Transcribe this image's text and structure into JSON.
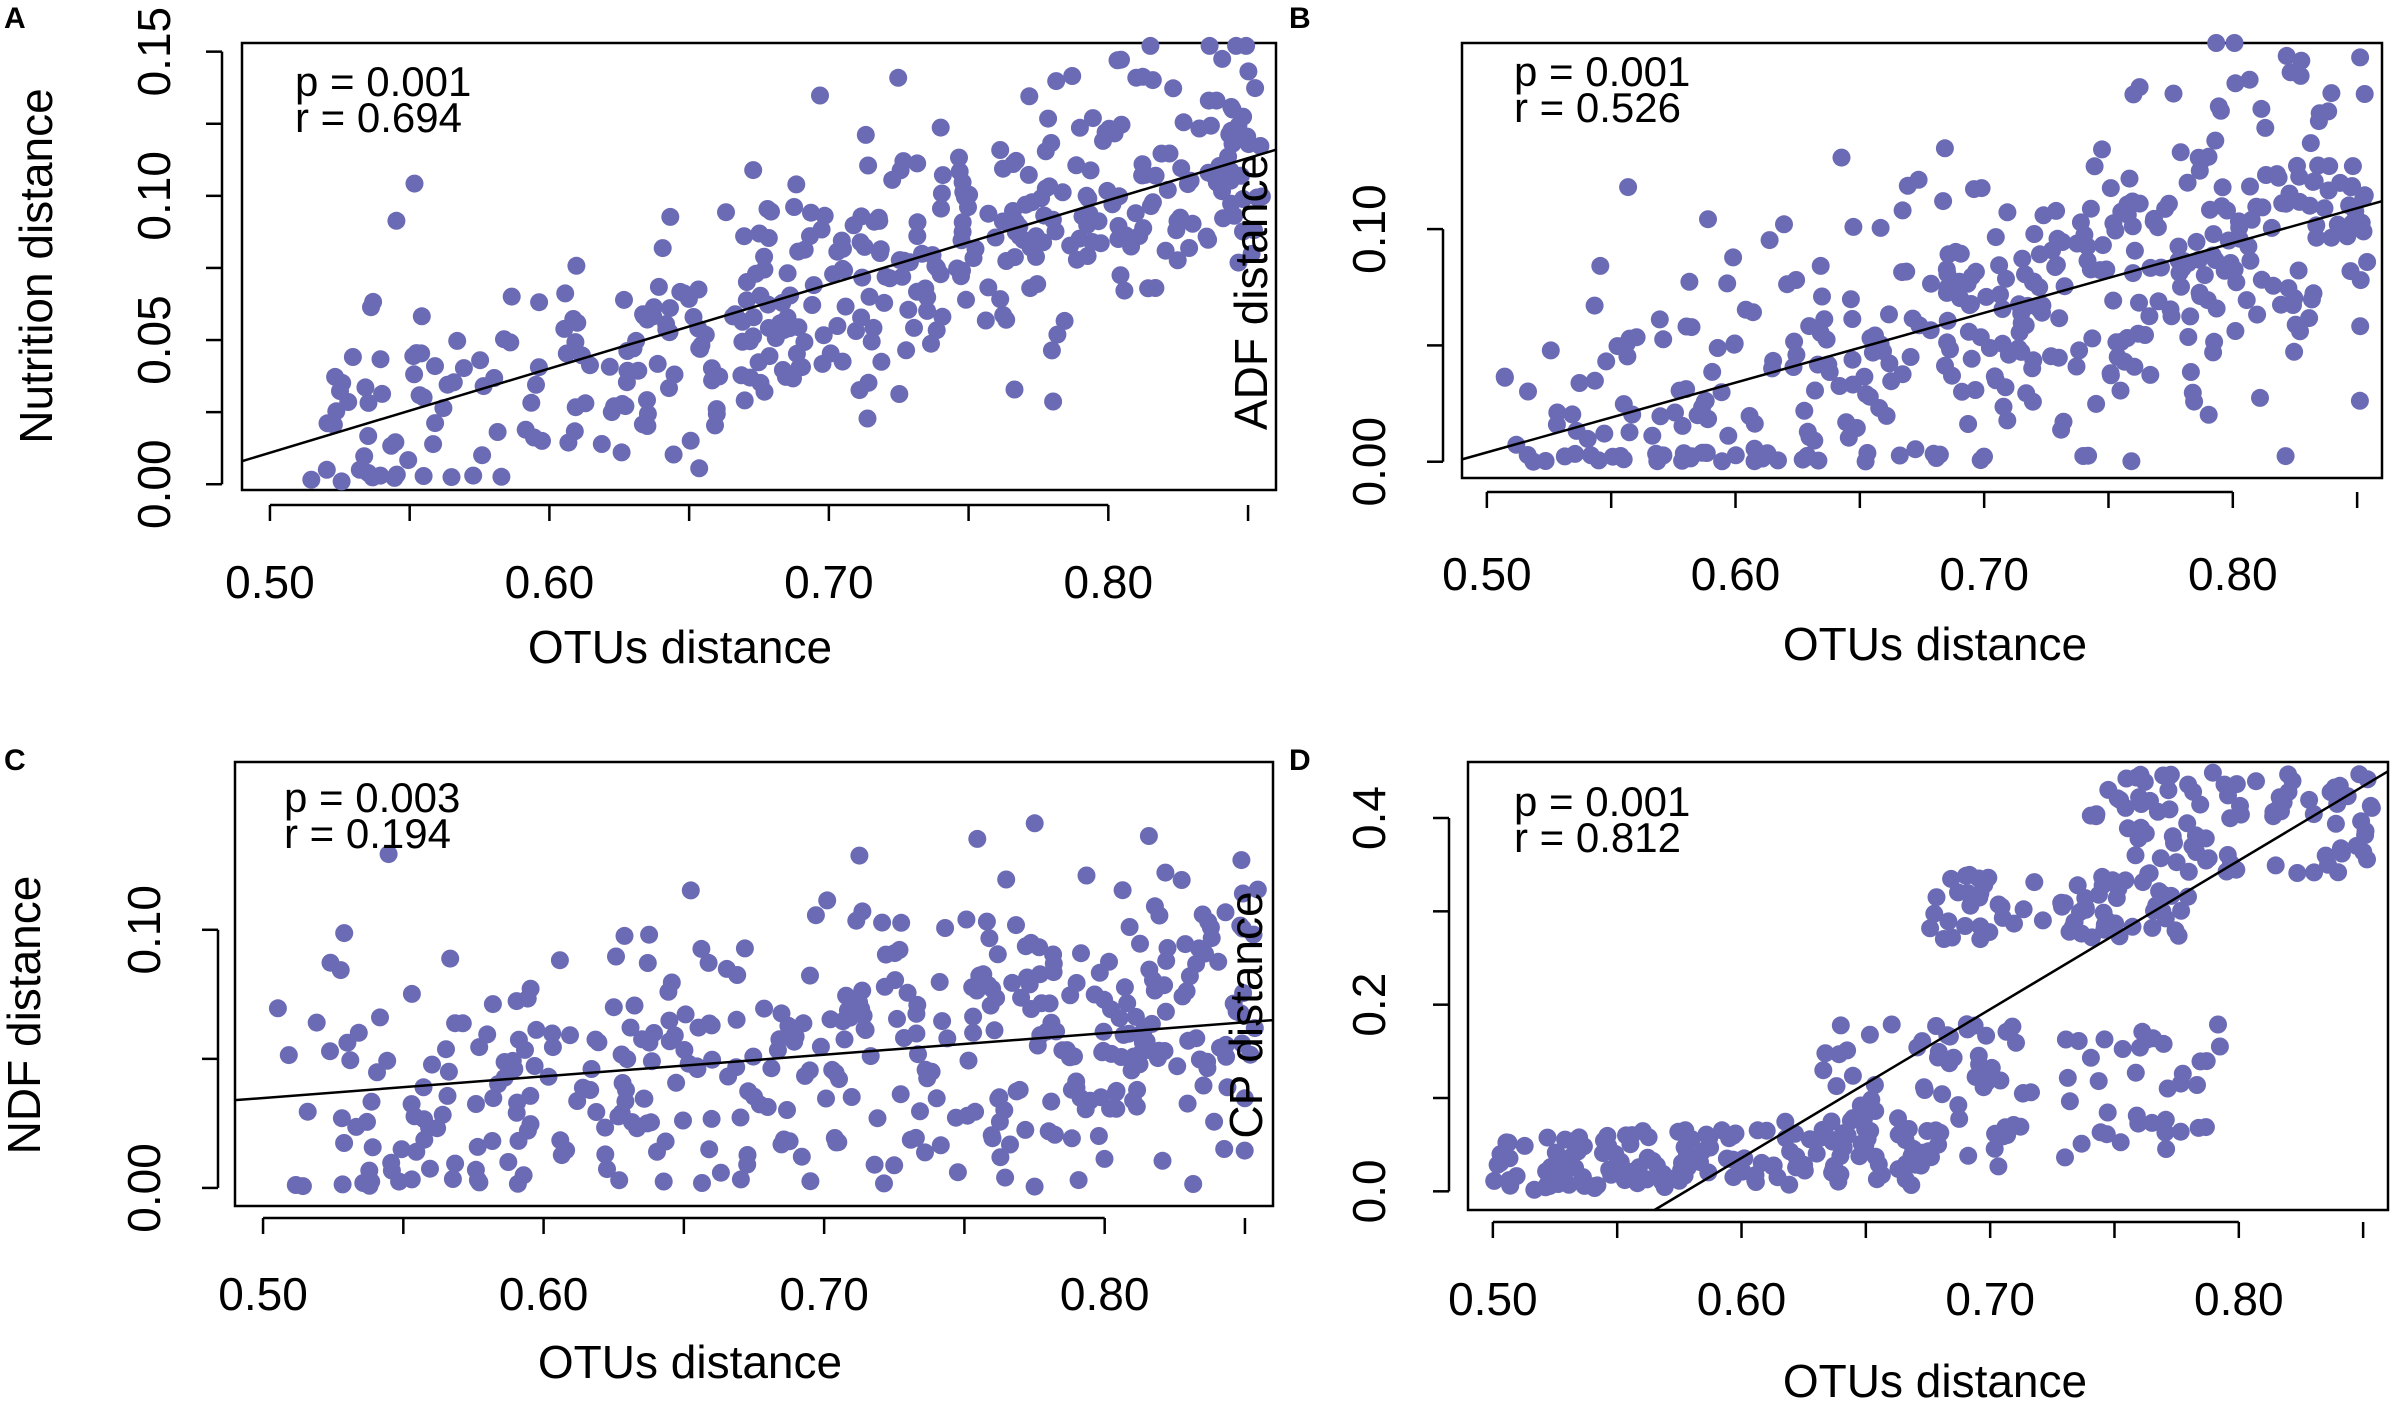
{
  "point_color": "#6B6BB5",
  "chart_data": [
    {
      "panel": "A",
      "type": "scatter",
      "xlabel": "OTUs distance",
      "ylabel": "Nutrition distance",
      "xlim": [
        0.49,
        0.86
      ],
      "ylim": [
        -0.002,
        0.153
      ],
      "xticks": [
        "0.50",
        "0.60",
        "0.70",
        "0.80"
      ],
      "yticks": [
        "0.00",
        "0.05",
        "0.10",
        "0.15"
      ],
      "p": "p = 0.001",
      "r": "r = 0.694",
      "regression": {
        "x": [
          0.49,
          0.86
        ],
        "y": [
          0.008,
          0.116
        ]
      },
      "point_shape": "linear",
      "n_points": 420,
      "seed": 11,
      "x_dist": {
        "min": 0.5,
        "max": 0.855,
        "skew": 0.72
      },
      "fit": {
        "x0": 0.49,
        "y0": 0.008,
        "slope": 0.292
      },
      "noise_sd": 0.022,
      "y_clip": [
        0.0,
        0.152
      ]
    },
    {
      "panel": "B",
      "type": "scatter",
      "xlabel": "OTUs distance",
      "ylabel": "ADF distance",
      "xlim": [
        0.49,
        0.86
      ],
      "ylim": [
        -0.007,
        0.18
      ],
      "xticks": [
        "0.50",
        "0.60",
        "0.70",
        "0.80"
      ],
      "yticks": [
        "0.00",
        "0.10"
      ],
      "p": "p = 0.001",
      "r": "r = 0.526",
      "regression": {
        "x": [
          0.49,
          0.86
        ],
        "y": [
          0.001,
          0.112
        ]
      },
      "point_shape": "linear",
      "n_points": 420,
      "seed": 23,
      "x_dist": {
        "min": 0.5,
        "max": 0.855,
        "skew": 0.72
      },
      "fit": {
        "x0": 0.49,
        "y0": 0.001,
        "slope": 0.3
      },
      "noise_sd": 0.034,
      "y_clip": [
        0.0,
        0.18
      ]
    },
    {
      "panel": "C",
      "type": "scatter",
      "xlabel": "OTUs distance",
      "ylabel": "NDF distance",
      "xlim": [
        0.49,
        0.86
      ],
      "ylim": [
        -0.007,
        0.165
      ],
      "xticks": [
        "0.50",
        "0.60",
        "0.70",
        "0.80"
      ],
      "yticks": [
        "0.00",
        "0.10"
      ],
      "p": "p = 0.003",
      "r": "r = 0.194",
      "regression": {
        "x": [
          0.49,
          0.86
        ],
        "y": [
          0.034,
          0.065
        ]
      },
      "point_shape": "linear",
      "n_points": 420,
      "seed": 37,
      "x_dist": {
        "min": 0.5,
        "max": 0.855,
        "skew": 0.72
      },
      "fit": {
        "x0": 0.49,
        "y0": 0.034,
        "slope": 0.084
      },
      "noise_sd": 0.03,
      "y_clip": [
        0.0,
        0.165
      ]
    },
    {
      "panel": "D",
      "type": "scatter",
      "xlabel": "OTUs distance",
      "ylabel": "CP distance",
      "xlim": [
        0.49,
        0.86
      ],
      "ylim": [
        -0.02,
        0.46
      ],
      "xticks": [
        "0.50",
        "0.60",
        "0.70",
        "0.80"
      ],
      "yticks": [
        "0.0",
        "0.2",
        "0.4"
      ],
      "p": "p = 0.001",
      "r": "r = 0.812",
      "regression": {
        "x": [
          0.565,
          0.86
        ],
        "y": [
          -0.02,
          0.45
        ]
      },
      "point_shape": "clusters",
      "n_points": 420,
      "seed": 51,
      "clusters": [
        {
          "n": 160,
          "x": [
            0.5,
            0.68
          ],
          "y": [
            0.0,
            0.06
          ],
          "trend": 0.15
        },
        {
          "n": 100,
          "x": [
            0.63,
            0.8
          ],
          "y": [
            0.02,
            0.18
          ],
          "trend": 0.0
        },
        {
          "n": 70,
          "x": [
            0.67,
            0.78
          ],
          "y": [
            0.27,
            0.34
          ],
          "trend": 0.0
        },
        {
          "n": 90,
          "x": [
            0.74,
            0.855
          ],
          "y": [
            0.34,
            0.45
          ],
          "trend": 0.0
        }
      ],
      "y_clip": [
        0.0,
        0.455
      ]
    }
  ]
}
